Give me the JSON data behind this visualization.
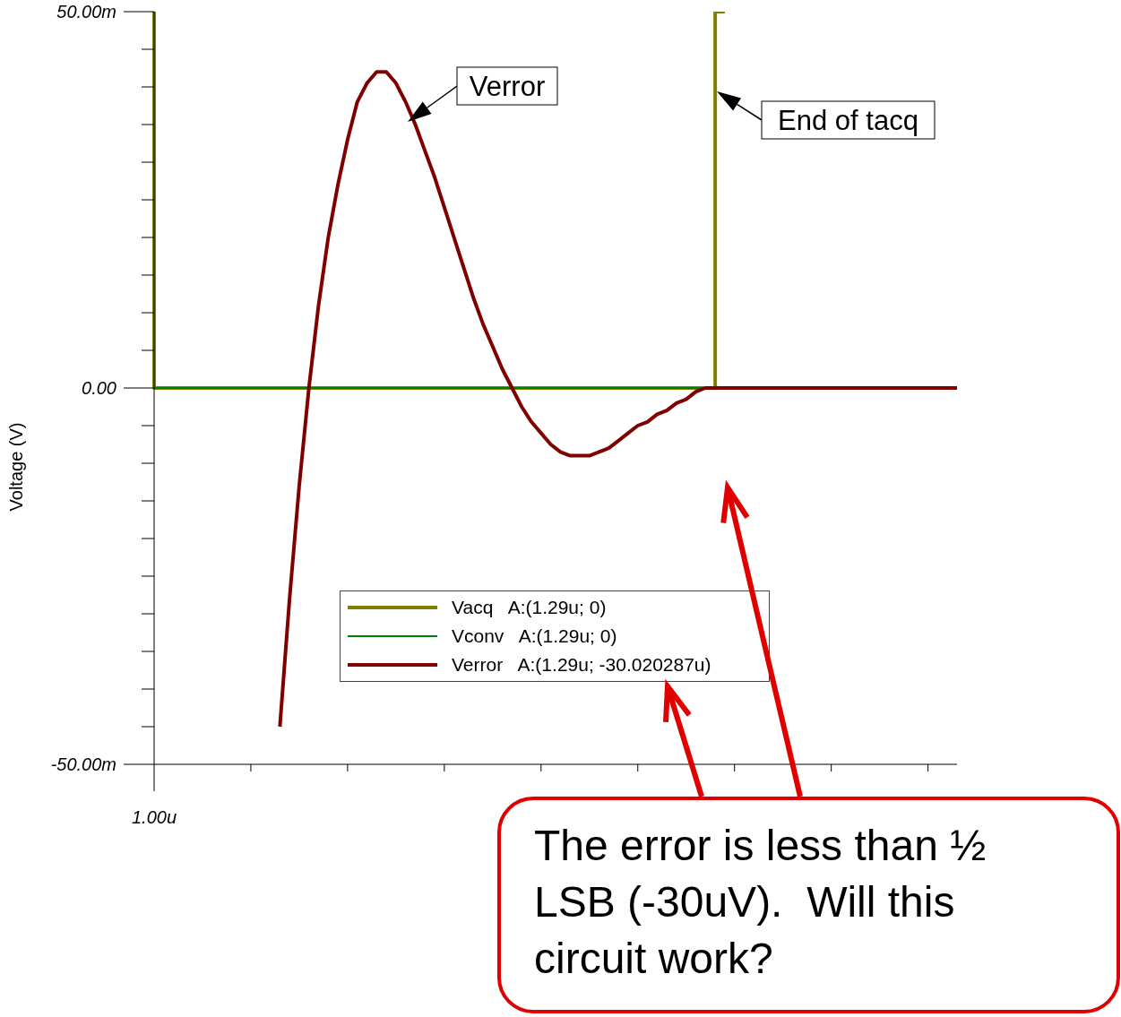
{
  "chart_data": {
    "type": "line",
    "ylabel": "Voltage (V)",
    "categories": [
      "1.00u",
      null,
      null,
      null,
      null,
      null,
      null,
      null,
      null,
      null,
      null,
      null,
      null,
      null,
      null,
      null,
      null,
      null,
      null,
      null,
      null,
      null,
      null,
      null,
      null,
      null,
      null,
      null,
      null,
      null,
      null,
      null,
      null,
      null,
      null,
      null,
      null,
      null,
      null,
      null,
      null,
      null,
      null,
      null,
      null,
      null,
      null,
      null,
      null,
      null,
      null,
      null,
      null,
      null,
      null,
      null,
      null,
      null,
      null,
      null,
      null,
      null,
      null,
      null,
      null,
      null,
      null,
      null,
      null,
      null,
      null,
      null,
      null,
      null,
      null,
      null,
      null,
      null,
      null,
      null,
      null,
      null,
      null,
      null
    ],
    "ylim": [
      -50,
      50
    ],
    "yticks": [
      {
        "value": -50,
        "label": "-50.00m"
      },
      {
        "value": -45,
        "label": null
      },
      {
        "value": -40,
        "label": null
      },
      {
        "value": -35,
        "label": null
      },
      {
        "value": -30,
        "label": null
      },
      {
        "value": -25,
        "label": null
      },
      {
        "value": -20,
        "label": null
      },
      {
        "value": -15,
        "label": null
      },
      {
        "value": -10,
        "label": null
      },
      {
        "value": -5,
        "label": null
      },
      {
        "value": 0,
        "label": "0.00"
      },
      {
        "value": 5,
        "label": null
      },
      {
        "value": 10,
        "label": null
      },
      {
        "value": 15,
        "label": null
      },
      {
        "value": 20,
        "label": null
      },
      {
        "value": 25,
        "label": null
      },
      {
        "value": 30,
        "label": null
      },
      {
        "value": 35,
        "label": null
      },
      {
        "value": 40,
        "label": null
      },
      {
        "value": 45,
        "label": null
      },
      {
        "value": 50,
        "label": "50.00m"
      }
    ],
    "legend": "center",
    "series": [
      {
        "name": "Vacq   A:(1.29u; 0)",
        "color": "#808000",
        "type": "step",
        "values": [
          50,
          0,
          0,
          0,
          0,
          0,
          0,
          0,
          0,
          0,
          0,
          0,
          0,
          0,
          0,
          0,
          0,
          0,
          0,
          0,
          0,
          0,
          0,
          0,
          0,
          0,
          0,
          0,
          0,
          0,
          0,
          0,
          0,
          0,
          0,
          0,
          0,
          0,
          0,
          0,
          0,
          0,
          0,
          0,
          0,
          0,
          0,
          0,
          0,
          0,
          0,
          0,
          0,
          0,
          0,
          0,
          0,
          0,
          0,
          50,
          null,
          null,
          null,
          null,
          null,
          null,
          null,
          null,
          null,
          null,
          null,
          null,
          null,
          null,
          null,
          null,
          null,
          null,
          null,
          null,
          null,
          null,
          null,
          null
        ]
      },
      {
        "name": "Vconv   A:(1.29u; 0)",
        "color": "#008000",
        "values": [
          0,
          0,
          0,
          0,
          0,
          0,
          0,
          0,
          0,
          0,
          0,
          0,
          0,
          0,
          0,
          0,
          0,
          0,
          0,
          0,
          0,
          0,
          0,
          0,
          0,
          0,
          0,
          0,
          0,
          0,
          0,
          0,
          0,
          0,
          0,
          0,
          0,
          0,
          0,
          0,
          0,
          0,
          0,
          0,
          0,
          0,
          0,
          0,
          0,
          0,
          0,
          0,
          0,
          0,
          0,
          0,
          0,
          0,
          0,
          null,
          null,
          null,
          null,
          null,
          null,
          null,
          null,
          null,
          null,
          null,
          null,
          null,
          null,
          null,
          null,
          null,
          null,
          null,
          null,
          null,
          null,
          null,
          null,
          null
        ]
      },
      {
        "name": "Verror   A:(1.29u; -30.020287u)",
        "color": "#800000",
        "values": [
          null,
          null,
          null,
          null,
          null,
          null,
          null,
          null,
          null,
          null,
          null,
          null,
          null,
          -45,
          -28,
          -13,
          0,
          11,
          20,
          27,
          33,
          38,
          40.5,
          42,
          42,
          40.5,
          38,
          35,
          31.5,
          28,
          24,
          20,
          16,
          12,
          8.5,
          5.5,
          2.5,
          0,
          -2.5,
          -4.5,
          -6,
          -7.5,
          -8.5,
          -9,
          -9,
          -9,
          -8.5,
          -8,
          -7,
          -6,
          -5,
          -4.5,
          -3.5,
          -3,
          -2,
          -1.5,
          -0.5,
          0,
          0,
          0,
          0,
          0,
          0,
          0,
          0,
          0,
          0,
          0,
          0,
          0,
          0,
          0,
          0,
          0,
          0,
          0,
          0,
          0,
          0,
          0,
          0,
          0,
          0,
          0
        ]
      }
    ],
    "annotations": [
      "Verror",
      "End of tacq",
      "The error is less than ½ LSB (-30uV).  Will this circuit work?"
    ]
  }
}
